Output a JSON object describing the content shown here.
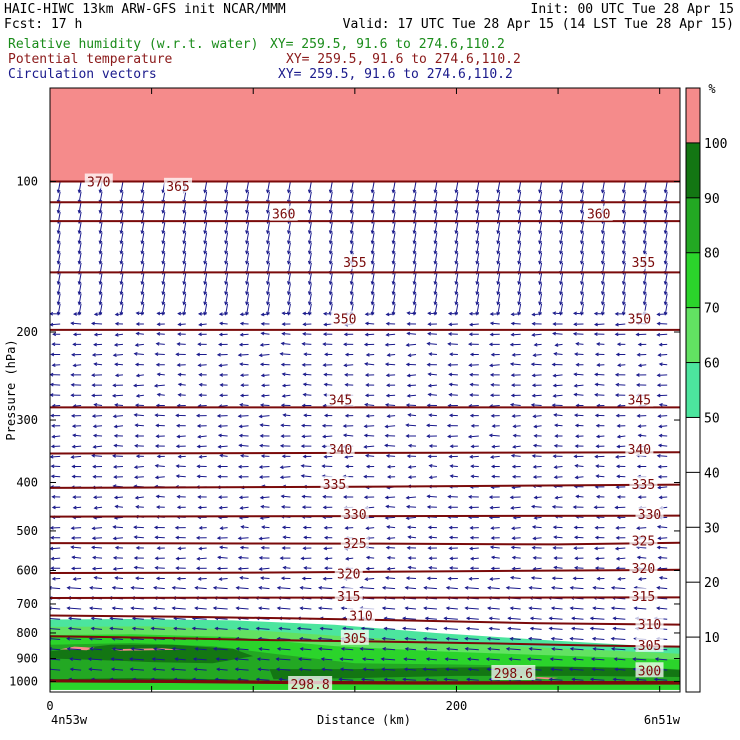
{
  "header": {
    "title_left": "HAIC-HIWC 13km ARW-GFS init   NCAR/MMM",
    "init": "Init: 00 UTC Tue 28 Apr 15",
    "fcst": "Fcst:   17 h",
    "valid": "Valid: 17 UTC Tue 28 Apr 15 (14 LST Tue 28 Apr 15)",
    "fields": [
      {
        "label": "Relative humidity (w.r.t. water)",
        "xy": "XY= 259.5, 91.6 to 274.6,110.2",
        "color": "#1a8c1a"
      },
      {
        "label": "Potential temperature",
        "xy": "XY= 259.5, 91.6 to 274.6,110.2",
        "color": "#8b1a1a"
      },
      {
        "label": "Circulation vectors",
        "xy": "XY= 259.5, 91.6 to 274.6,110.2",
        "color": "#1a1a8c"
      }
    ]
  },
  "chart_data": {
    "type": "cross-section",
    "ylabel": "Pressure (hPa)",
    "xlabel": "Distance (km)",
    "y_ticks": [
      100,
      200,
      300,
      400,
      500,
      600,
      700,
      800,
      900,
      1000
    ],
    "y_scale": "log",
    "ylim": [
      1050,
      65
    ],
    "xlim": [
      0,
      310
    ],
    "x_ticks": [
      0,
      200
    ],
    "x_end_labels": [
      "4n53w",
      "6n51w"
    ],
    "colorbar": {
      "unit": "%",
      "tick_labels": [
        10,
        20,
        30,
        40,
        50,
        60,
        70,
        80,
        90,
        100
      ],
      "bands": [
        {
          "from": 50,
          "to": 60,
          "color": "#4ce59e"
        },
        {
          "from": 60,
          "to": 70,
          "color": "#62e262"
        },
        {
          "from": 70,
          "to": 80,
          "color": "#2bd42b"
        },
        {
          "from": 80,
          "to": 90,
          "color": "#23a823"
        },
        {
          "from": 90,
          "to": 100,
          "color": "#137613"
        },
        {
          "from": 100,
          "to": 110,
          "color": "#f58b8b"
        }
      ]
    },
    "theta_contours": [
      {
        "label": "298.8",
        "points": [
          [
            0,
            1000
          ],
          [
            60,
            1003
          ],
          [
            120,
            1008
          ],
          [
            180,
            1010
          ],
          [
            240,
            1010
          ],
          [
            310,
            1010
          ]
        ]
      },
      {
        "label": "300",
        "points": [
          [
            0,
            995
          ],
          [
            60,
            997
          ],
          [
            120,
            1002
          ],
          [
            180,
            1004
          ],
          [
            240,
            1003
          ],
          [
            310,
            1003
          ]
        ]
      },
      {
        "label": "305",
        "points": [
          [
            0,
            812
          ],
          [
            50,
            818
          ],
          [
            100,
            826
          ],
          [
            160,
            832
          ],
          [
            220,
            840
          ],
          [
            270,
            848
          ],
          [
            310,
            852
          ]
        ]
      },
      {
        "label": "310",
        "points": [
          [
            0,
            738
          ],
          [
            60,
            742
          ],
          [
            120,
            748
          ],
          [
            180,
            756
          ],
          [
            240,
            765
          ],
          [
            310,
            770
          ]
        ]
      },
      {
        "label": "315",
        "points": [
          [
            0,
            681
          ],
          [
            100,
            680
          ],
          [
            200,
            680
          ],
          [
            310,
            679
          ]
        ]
      },
      {
        "label": "320",
        "points": [
          [
            0,
            607
          ],
          [
            100,
            606
          ],
          [
            200,
            602
          ],
          [
            310,
            598
          ]
        ]
      },
      {
        "label": "325",
        "points": [
          [
            0,
            529
          ],
          [
            150,
            530
          ],
          [
            250,
            532
          ],
          [
            310,
            528
          ]
        ]
      },
      {
        "label": "330",
        "points": [
          [
            0,
            468
          ],
          [
            150,
            467
          ],
          [
            310,
            466
          ]
        ]
      },
      {
        "label": "335",
        "points": [
          [
            0,
            410
          ],
          [
            150,
            408
          ],
          [
            310,
            404
          ]
        ]
      },
      {
        "label": "340",
        "points": [
          [
            0,
            350
          ],
          [
            150,
            349
          ],
          [
            310,
            348
          ]
        ]
      },
      {
        "label": "345",
        "points": [
          [
            0,
            283
          ],
          [
            150,
            283
          ],
          [
            310,
            283
          ]
        ]
      },
      {
        "label": "350",
        "points": [
          [
            0,
            198
          ],
          [
            150,
            198
          ],
          [
            310,
            198
          ]
        ]
      },
      {
        "label": "355",
        "points": [
          [
            0,
            152
          ],
          [
            150,
            152
          ],
          [
            310,
            152
          ]
        ]
      },
      {
        "label": "360",
        "points": [
          [
            0,
            120
          ],
          [
            150,
            120
          ],
          [
            310,
            120
          ]
        ]
      },
      {
        "label": "365",
        "points": [
          [
            0,
            110
          ],
          [
            150,
            110
          ],
          [
            310,
            110
          ]
        ]
      },
      {
        "label": "370",
        "points": [
          [
            0,
            100
          ],
          [
            150,
            100
          ],
          [
            310,
            100
          ]
        ]
      }
    ],
    "theta_labels": [
      {
        "text": "370",
        "x": 24,
        "p": 100
      },
      {
        "text": "365",
        "x": 63,
        "p": 102
      },
      {
        "text": "360",
        "x": 115,
        "p": 116
      },
      {
        "text": "360",
        "x": 270,
        "p": 116
      },
      {
        "text": "355",
        "x": 150,
        "p": 145
      },
      {
        "text": "355",
        "x": 292,
        "p": 145
      },
      {
        "text": "350",
        "x": 145,
        "p": 188
      },
      {
        "text": "350",
        "x": 290,
        "p": 188
      },
      {
        "text": "345",
        "x": 143,
        "p": 273
      },
      {
        "text": "345",
        "x": 290,
        "p": 273
      },
      {
        "text": "340",
        "x": 143,
        "p": 343
      },
      {
        "text": "340",
        "x": 290,
        "p": 343
      },
      {
        "text": "335",
        "x": 140,
        "p": 403
      },
      {
        "text": "335",
        "x": 292,
        "p": 403
      },
      {
        "text": "330",
        "x": 150,
        "p": 463
      },
      {
        "text": "330",
        "x": 295,
        "p": 463
      },
      {
        "text": "325",
        "x": 150,
        "p": 528
      },
      {
        "text": "325",
        "x": 292,
        "p": 522
      },
      {
        "text": "320",
        "x": 147,
        "p": 608
      },
      {
        "text": "320",
        "x": 292,
        "p": 593
      },
      {
        "text": "315",
        "x": 147,
        "p": 675
      },
      {
        "text": "315",
        "x": 292,
        "p": 675
      },
      {
        "text": "310",
        "x": 153,
        "p": 738
      },
      {
        "text": "310",
        "x": 295,
        "p": 767
      },
      {
        "text": "305",
        "x": 150,
        "p": 818
      },
      {
        "text": "305",
        "x": 295,
        "p": 845
      },
      {
        "text": "300",
        "x": 295,
        "p": 950
      },
      {
        "text": "298.6",
        "x": 228,
        "p": 962
      },
      {
        "text": "298.8",
        "x": 128,
        "p": 1012
      }
    ],
    "rh_regions": [
      {
        "value": 50,
        "points": [
          [
            0,
            752
          ],
          [
            40,
            750
          ],
          [
            90,
            755
          ],
          [
            140,
            770
          ],
          [
            190,
            800
          ],
          [
            240,
            825
          ],
          [
            290,
            848
          ],
          [
            310,
            850
          ],
          [
            310,
            1040
          ],
          [
            0,
            1040
          ]
        ]
      },
      {
        "value": 60,
        "points": [
          [
            0,
            778
          ],
          [
            50,
            776
          ],
          [
            100,
            790
          ],
          [
            150,
            815
          ],
          [
            200,
            838
          ],
          [
            250,
            858
          ],
          [
            310,
            880
          ],
          [
            310,
            1040
          ],
          [
            0,
            1040
          ]
        ]
      },
      {
        "value": 70,
        "points": [
          [
            0,
            808
          ],
          [
            40,
            805
          ],
          [
            90,
            815
          ],
          [
            140,
            850
          ],
          [
            190,
            870
          ],
          [
            240,
            885
          ],
          [
            310,
            905
          ],
          [
            310,
            1040
          ],
          [
            0,
            1040
          ]
        ]
      },
      {
        "value": 80,
        "points": [
          [
            0,
            845
          ],
          [
            40,
            838
          ],
          [
            80,
            850
          ],
          [
            110,
            880
          ],
          [
            150,
            920
          ],
          [
            200,
            925
          ],
          [
            260,
            935
          ],
          [
            310,
            945
          ],
          [
            310,
            1010
          ],
          [
            100,
            1010
          ],
          [
            70,
            1000
          ],
          [
            0,
            1000
          ]
        ]
      },
      {
        "value": 90,
        "points": [
          [
            0,
            870
          ],
          [
            30,
            845
          ],
          [
            60,
            845
          ],
          [
            90,
            860
          ],
          [
            100,
            890
          ],
          [
            80,
            920
          ],
          [
            50,
            915
          ],
          [
            20,
            905
          ],
          [
            0,
            900
          ]
        ]
      },
      {
        "value": 90,
        "points": [
          [
            108,
            945
          ],
          [
            150,
            945
          ],
          [
            200,
            938
          ],
          [
            250,
            935
          ],
          [
            300,
            942
          ],
          [
            310,
            950
          ],
          [
            310,
            980
          ],
          [
            260,
            975
          ],
          [
            200,
            975
          ],
          [
            150,
            985
          ],
          [
            110,
            990
          ]
        ]
      },
      {
        "value": 90,
        "points": [
          [
            0,
            990
          ],
          [
            40,
            985
          ],
          [
            90,
            990
          ],
          [
            100,
            1000
          ],
          [
            0,
            1003
          ]
        ]
      },
      {
        "value": 100,
        "points": [
          [
            0,
            65
          ],
          [
            310,
            65
          ],
          [
            310,
            100
          ],
          [
            0,
            100
          ]
        ]
      },
      {
        "value": 100,
        "points": [
          [
            5,
            862
          ],
          [
            12,
            852
          ],
          [
            22,
            856
          ],
          [
            18,
            866
          ]
        ]
      },
      {
        "value": 100,
        "points": [
          [
            30,
            862
          ],
          [
            55,
            858
          ],
          [
            65,
            864
          ],
          [
            35,
            868
          ]
        ]
      },
      {
        "value": 100,
        "points": [
          [
            240,
            980
          ],
          [
            250,
            984
          ],
          [
            245,
            990
          ],
          [
            238,
            986
          ]
        ]
      }
    ]
  }
}
